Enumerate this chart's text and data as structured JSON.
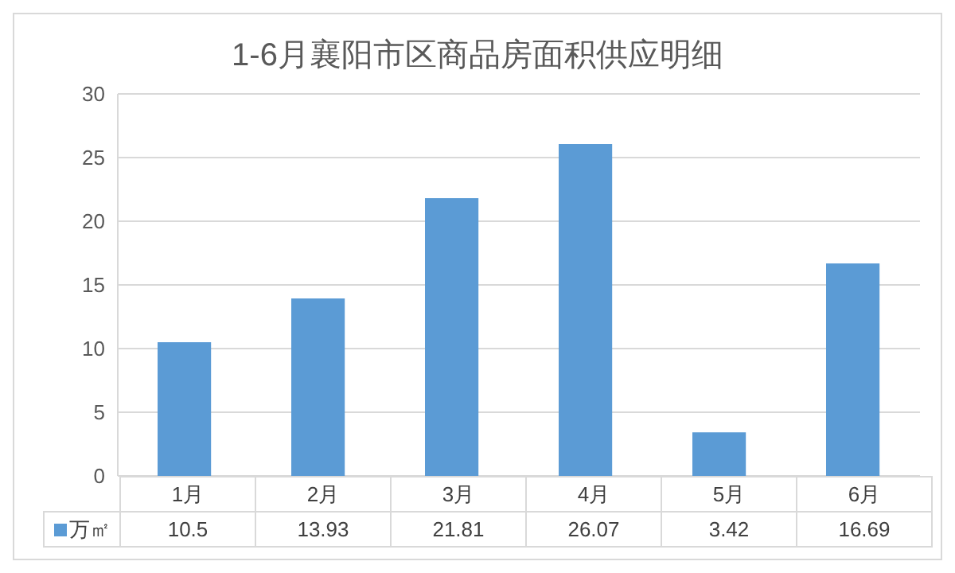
{
  "chart_data": {
    "type": "bar",
    "title": "1-6月襄阳市区商品房面积供应明细",
    "categories": [
      "1月",
      "2月",
      "3月",
      "4月",
      "5月",
      "6月"
    ],
    "series": [
      {
        "name": "万㎡",
        "color": "#5b9bd5",
        "values": [
          10.5,
          13.93,
          21.81,
          26.07,
          3.42,
          16.69
        ]
      }
    ],
    "ylim": [
      0,
      30
    ],
    "yticks": [
      0,
      5,
      10,
      15,
      20,
      25,
      30
    ],
    "grid": "y",
    "legend": "bottom",
    "data_labels": true
  }
}
